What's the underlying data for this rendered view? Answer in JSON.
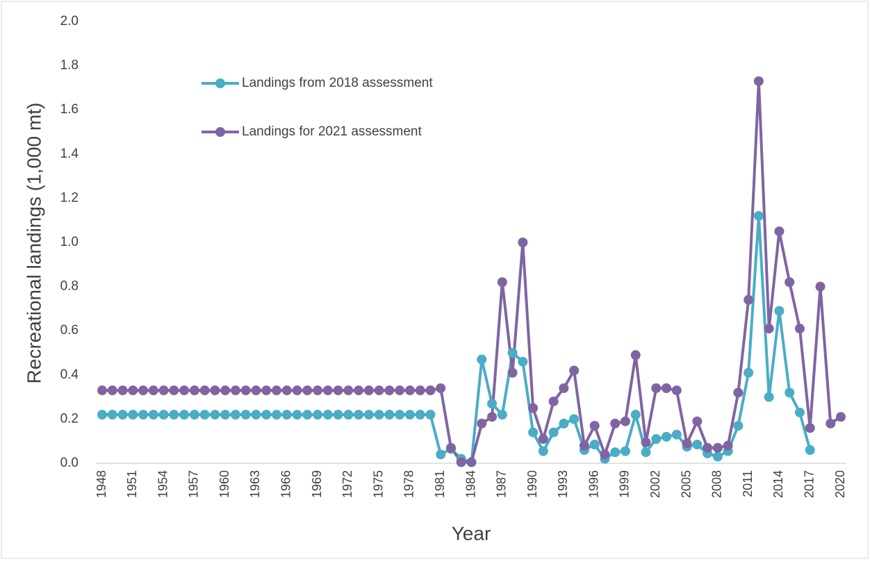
{
  "chart_data": {
    "type": "line",
    "x_label": "Year",
    "y_label": "Recreational landings (1,000 mt)",
    "categories": [
      "1948",
      null,
      null,
      "1951",
      null,
      null,
      "1954",
      null,
      null,
      "1957",
      null,
      null,
      "1960",
      null,
      null,
      "1963",
      null,
      null,
      "1966",
      null,
      null,
      "1969",
      null,
      null,
      "1972",
      null,
      null,
      "1975",
      null,
      null,
      "1978",
      null,
      null,
      "1981",
      null,
      null,
      "1984",
      null,
      null,
      "1987",
      null,
      null,
      "1990",
      null,
      null,
      "1993",
      null,
      null,
      "1996",
      null,
      null,
      "1999",
      null,
      null,
      "2002",
      null,
      null,
      "2005",
      null,
      null,
      "2008",
      null,
      null,
      "2011",
      null,
      null,
      "2014",
      null,
      null,
      "2017",
      null,
      null,
      "2020"
    ],
    "series": [
      {
        "name": "Landings from 2018 assessment",
        "color": "#4bacc6",
        "values": [
          0.22,
          0.22,
          0.22,
          0.22,
          0.22,
          0.22,
          0.22,
          0.22,
          0.22,
          0.22,
          0.22,
          0.22,
          0.22,
          0.22,
          0.22,
          0.22,
          0.22,
          0.22,
          0.22,
          0.22,
          0.22,
          0.22,
          0.22,
          0.22,
          0.22,
          0.22,
          0.22,
          0.22,
          0.22,
          0.22,
          0.22,
          0.22,
          0.22,
          0.04,
          0.065,
          0.02,
          0.005,
          0.47,
          0.27,
          0.22,
          0.5,
          0.46,
          0.14,
          0.055,
          0.14,
          0.18,
          0.2,
          0.06,
          0.085,
          0.02,
          0.05,
          0.055,
          0.22,
          0.05,
          0.11,
          0.12,
          0.13,
          0.075,
          0.085,
          0.045,
          0.03,
          0.055,
          0.17,
          0.41,
          1.12,
          0.3,
          0.69,
          0.32,
          0.23,
          0.06,
          null,
          null,
          null
        ]
      },
      {
        "name": "Landings for 2021 assessment",
        "color": "#8064a2",
        "values": [
          0.33,
          0.33,
          0.33,
          0.33,
          0.33,
          0.33,
          0.33,
          0.33,
          0.33,
          0.33,
          0.33,
          0.33,
          0.33,
          0.33,
          0.33,
          0.33,
          0.33,
          0.33,
          0.33,
          0.33,
          0.33,
          0.33,
          0.33,
          0.33,
          0.33,
          0.33,
          0.33,
          0.33,
          0.33,
          0.33,
          0.33,
          0.33,
          0.33,
          0.34,
          0.07,
          0.005,
          0.005,
          0.18,
          0.21,
          0.82,
          0.41,
          1.0,
          0.25,
          0.11,
          0.28,
          0.34,
          0.42,
          0.08,
          0.17,
          0.04,
          0.18,
          0.19,
          0.49,
          0.095,
          0.34,
          0.34,
          0.33,
          0.09,
          0.19,
          0.07,
          0.07,
          0.08,
          0.32,
          0.74,
          1.73,
          0.61,
          1.05,
          0.82,
          0.61,
          0.16,
          0.8,
          0.18,
          0.21
        ]
      }
    ],
    "ylim": [
      0,
      2
    ],
    "yticks": [
      {
        "value": 0,
        "label": "0.0"
      },
      {
        "value": 0.2,
        "label": "0.2"
      },
      {
        "value": 0.4,
        "label": "0.4"
      },
      {
        "value": 0.6,
        "label": "0.6"
      },
      {
        "value": 0.8,
        "label": "0.8"
      },
      {
        "value": 1,
        "label": "1.0"
      },
      {
        "value": 1.2,
        "label": "1.2"
      },
      {
        "value": 1.4,
        "label": "1.4"
      },
      {
        "value": 1.6,
        "label": "1.6"
      },
      {
        "value": 1.8,
        "label": "1.8"
      },
      {
        "value": 2,
        "label": "2.0"
      }
    ],
    "grid": false,
    "legend": "upper left"
  }
}
